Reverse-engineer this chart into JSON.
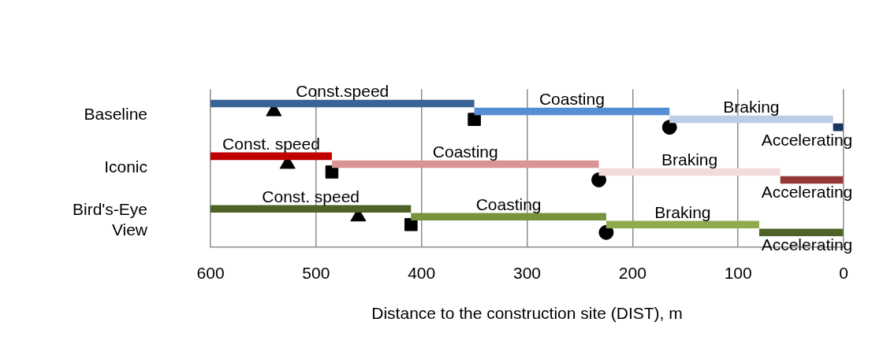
{
  "chart_data": {
    "type": "bar",
    "orientation": "horizontal",
    "xlabel": "Distance to the construction site (DIST), m",
    "categories": [
      "Baseline",
      "Iconic",
      "Bird's-Eye View"
    ],
    "xlim": [
      600,
      0
    ],
    "xticks": [
      600,
      500,
      400,
      300,
      200,
      100,
      0
    ],
    "grid": "x",
    "legend": false,
    "series": [
      {
        "colors": [
          "#3a6397",
          "#c00000",
          "#4f6228"
        ],
        "base": [
          350,
          485,
          410
        ],
        "values": [
          250,
          115,
          190
        ],
        "value_labels": [
          "Const.speed",
          "Const. speed",
          "Const. speed"
        ]
      },
      {
        "colors": [
          "#558ed5",
          "#d99594",
          "#77933c"
        ],
        "base": [
          165,
          232,
          225
        ],
        "values": [
          185,
          253,
          185
        ],
        "value_labels": [
          "Coasting",
          "Coasting",
          "Coasting"
        ]
      },
      {
        "colors": [
          "#b9cde5",
          "#f2dcdb",
          "#8faa4f"
        ],
        "base": [
          10,
          60,
          80
        ],
        "values": [
          155,
          172,
          145
        ],
        "value_labels": [
          "Braking",
          "Braking",
          "Braking"
        ]
      },
      {
        "colors": [
          "#17375e",
          "#953735",
          "#4f6228"
        ],
        "base": [
          0,
          0,
          0
        ],
        "values": [
          10,
          60,
          80
        ],
        "value_labels": [
          "Accelerating",
          "Accelerating",
          "Accelerating"
        ]
      },
      {
        "type": "scatter",
        "marker": "triangle",
        "color": "#000000",
        "values": [
          540,
          527,
          460
        ]
      },
      {
        "type": "scatter",
        "marker": "square",
        "color": "#000000",
        "values": [
          350,
          485,
          410
        ]
      },
      {
        "type": "scatter",
        "marker": "circle",
        "color": "#000000",
        "values": [
          165,
          232,
          225
        ]
      }
    ]
  }
}
